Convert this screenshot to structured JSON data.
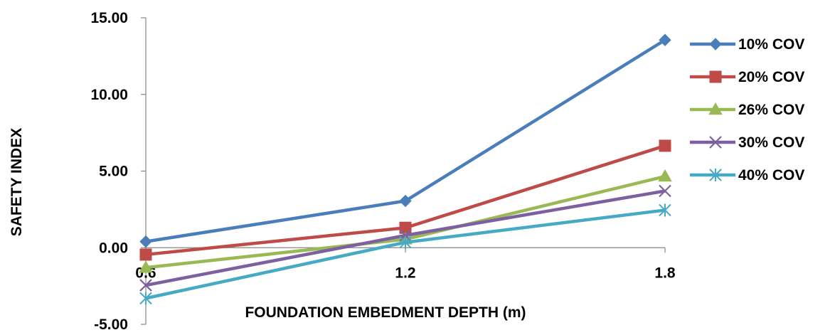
{
  "chart_data": {
    "type": "line",
    "title": "",
    "xlabel": "FOUNDATION EMBEDMENT DEPTH (m)",
    "ylabel": "SAFETY INDEX",
    "categories": [
      "0.6",
      "1.2",
      "1.8"
    ],
    "ylim": [
      -5,
      15
    ],
    "yticks": [
      "15.00",
      "10.00",
      "5.00",
      "0.00",
      "-5.00"
    ],
    "grid": false,
    "legend_position": "right",
    "series": [
      {
        "name": "10% COV",
        "values": [
          0.4,
          3.05,
          13.55
        ],
        "color": "#4A7EBB",
        "marker": "diamond"
      },
      {
        "name": "20% COV",
        "values": [
          -0.45,
          1.3,
          6.65
        ],
        "color": "#BE4B48",
        "marker": "square"
      },
      {
        "name": "26% COV",
        "values": [
          -1.3,
          0.55,
          4.65
        ],
        "color": "#98B954",
        "marker": "triangle"
      },
      {
        "name": "30% COV",
        "values": [
          -2.45,
          0.8,
          3.7
        ],
        "color": "#7D60A0",
        "marker": "x"
      },
      {
        "name": "40% COV",
        "values": [
          -3.3,
          0.35,
          2.45
        ],
        "color": "#46AAC5",
        "marker": "star"
      }
    ]
  }
}
